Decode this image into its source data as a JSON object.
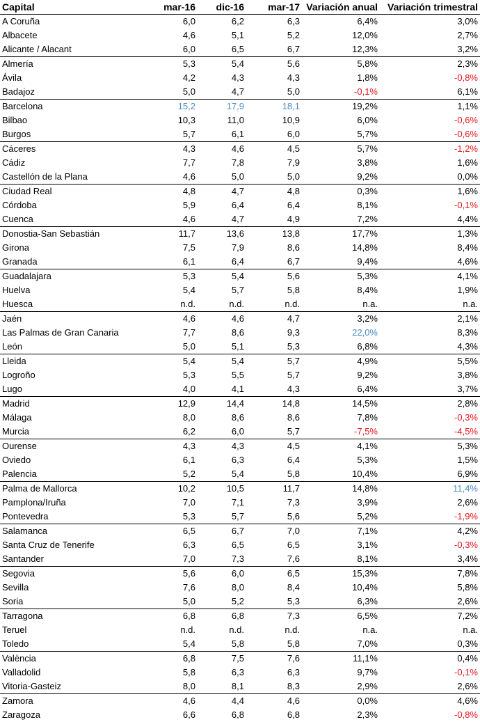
{
  "headers": [
    "Capital",
    "mar-16",
    "dic-16",
    "mar-17",
    "Variación anual",
    "Variación trimestral"
  ],
  "colors": {
    "highlight": "#4a8ac4",
    "negative": "#e8141c"
  },
  "rows": [
    {
      "group_start": false,
      "cells": [
        "A Coruña",
        "6,0",
        "6,2",
        "6,3",
        "6,4%",
        "3,0%"
      ]
    },
    {
      "group_start": false,
      "cells": [
        "Albacete",
        "4,6",
        "5,1",
        "5,2",
        "12,0%",
        "2,7%"
      ]
    },
    {
      "group_start": false,
      "cells": [
        "Alicante / Alacant",
        "6,0",
        "6,5",
        "6,7",
        "12,3%",
        "3,2%"
      ]
    },
    {
      "group_start": true,
      "cells": [
        "Almería",
        "5,3",
        "5,4",
        "5,6",
        "5,8%",
        "2,3%"
      ]
    },
    {
      "group_start": false,
      "cells": [
        "Ávila",
        "4,2",
        "4,3",
        "4,3",
        "1,8%",
        "-0,8%"
      ],
      "red": [
        5
      ]
    },
    {
      "group_start": false,
      "cells": [
        "Badajoz",
        "5,0",
        "4,7",
        "5,0",
        "-0,1%",
        "6,1%"
      ],
      "red": [
        4
      ]
    },
    {
      "group_start": true,
      "cells": [
        "Barcelona",
        "15,2",
        "17,9",
        "18,1",
        "19,2%",
        "1,1%"
      ],
      "blue": [
        1,
        2,
        3
      ]
    },
    {
      "group_start": false,
      "cells": [
        "Bilbao",
        "10,3",
        "11,0",
        "10,9",
        "6,0%",
        "-0,6%"
      ],
      "red": [
        5
      ]
    },
    {
      "group_start": false,
      "cells": [
        "Burgos",
        "5,7",
        "6,1",
        "6,0",
        "5,7%",
        "-0,6%"
      ],
      "red": [
        5
      ]
    },
    {
      "group_start": true,
      "cells": [
        "Cáceres",
        "4,3",
        "4,6",
        "4,5",
        "5,7%",
        "-1,2%"
      ],
      "red": [
        5
      ]
    },
    {
      "group_start": false,
      "cells": [
        "Cádiz",
        "7,7",
        "7,8",
        "7,9",
        "3,8%",
        "1,6%"
      ]
    },
    {
      "group_start": false,
      "cells": [
        "Castellón de la Plana",
        "4,6",
        "5,0",
        "5,0",
        "9,2%",
        "0,0%"
      ]
    },
    {
      "group_start": true,
      "cells": [
        "Ciudad Real",
        "4,8",
        "4,7",
        "4,8",
        "0,3%",
        "1,6%"
      ]
    },
    {
      "group_start": false,
      "cells": [
        "Córdoba",
        "5,9",
        "6,4",
        "6,4",
        "8,1%",
        "-0,1%"
      ],
      "red": [
        5
      ]
    },
    {
      "group_start": false,
      "cells": [
        "Cuenca",
        "4,6",
        "4,7",
        "4,9",
        "7,2%",
        "4,4%"
      ]
    },
    {
      "group_start": true,
      "cells": [
        "Donostia-San Sebastián",
        "11,7",
        "13,6",
        "13,8",
        "17,7%",
        "1,3%"
      ]
    },
    {
      "group_start": false,
      "cells": [
        "Girona",
        "7,5",
        "7,9",
        "8,6",
        "14,8%",
        "8,4%"
      ]
    },
    {
      "group_start": false,
      "cells": [
        "Granada",
        "6,1",
        "6,4",
        "6,7",
        "9,4%",
        "4,6%"
      ]
    },
    {
      "group_start": true,
      "cells": [
        "Guadalajara",
        "5,3",
        "5,4",
        "5,6",
        "5,3%",
        "4,1%"
      ]
    },
    {
      "group_start": false,
      "cells": [
        "Huelva",
        "5,4",
        "5,7",
        "5,8",
        "8,4%",
        "1,9%"
      ]
    },
    {
      "group_start": false,
      "cells": [
        "Huesca",
        "n.d.",
        "n.d.",
        "n.d.",
        "n.a.",
        "n.a."
      ]
    },
    {
      "group_start": true,
      "cells": [
        "Jaén",
        "4,6",
        "4,6",
        "4,7",
        "3,2%",
        "2,1%"
      ]
    },
    {
      "group_start": false,
      "cells": [
        "Las Palmas de Gran Canaria",
        "7,7",
        "8,6",
        "9,3",
        "22,0%",
        "8,3%"
      ],
      "blue": [
        4
      ]
    },
    {
      "group_start": false,
      "cells": [
        "León",
        "5,0",
        "5,1",
        "5,3",
        "6,8%",
        "4,3%"
      ]
    },
    {
      "group_start": true,
      "cells": [
        "Lleida",
        "5,4",
        "5,4",
        "5,7",
        "4,9%",
        "5,5%"
      ]
    },
    {
      "group_start": false,
      "cells": [
        "Logroño",
        "5,3",
        "5,5",
        "5,7",
        "9,2%",
        "3,8%"
      ]
    },
    {
      "group_start": false,
      "cells": [
        "Lugo",
        "4,0",
        "4,1",
        "4,3",
        "6,4%",
        "3,7%"
      ]
    },
    {
      "group_start": true,
      "cells": [
        "Madrid",
        "12,9",
        "14,4",
        "14,8",
        "14,5%",
        "2,8%"
      ]
    },
    {
      "group_start": false,
      "cells": [
        "Málaga",
        "8,0",
        "8,6",
        "8,6",
        "7,8%",
        "-0,3%"
      ],
      "red": [
        5
      ]
    },
    {
      "group_start": false,
      "cells": [
        "Murcia",
        "6,2",
        "6,0",
        "5,7",
        "-7,5%",
        "-4,5%"
      ],
      "red": [
        4,
        5
      ]
    },
    {
      "group_start": true,
      "cells": [
        "Ourense",
        "4,3",
        "4,3",
        "4,5",
        "4,1%",
        "5,3%"
      ]
    },
    {
      "group_start": false,
      "cells": [
        "Oviedo",
        "6,1",
        "6,3",
        "6,4",
        "5,3%",
        "1,5%"
      ]
    },
    {
      "group_start": false,
      "cells": [
        "Palencia",
        "5,2",
        "5,4",
        "5,8",
        "10,4%",
        "6,9%"
      ]
    },
    {
      "group_start": true,
      "cells": [
        "Palma de Mallorca",
        "10,2",
        "10,5",
        "11,7",
        "14,8%",
        "11,4%"
      ],
      "blue": [
        5
      ]
    },
    {
      "group_start": false,
      "cells": [
        "Pamplona/Iruña",
        "7,0",
        "7,1",
        "7,3",
        "3,9%",
        "2,6%"
      ]
    },
    {
      "group_start": false,
      "cells": [
        "Pontevedra",
        "5,3",
        "5,7",
        "5,6",
        "5,2%",
        "-1,9%"
      ],
      "red": [
        5
      ]
    },
    {
      "group_start": true,
      "cells": [
        "Salamanca",
        "6,5",
        "6,7",
        "7,0",
        "7,1%",
        "4,2%"
      ]
    },
    {
      "group_start": false,
      "cells": [
        "Santa Cruz de Tenerife",
        "6,3",
        "6,5",
        "6,5",
        "3,1%",
        "-0,3%"
      ],
      "red": [
        5
      ]
    },
    {
      "group_start": false,
      "cells": [
        "Santander",
        "7,0",
        "7,3",
        "7,6",
        "8,1%",
        "3,4%"
      ]
    },
    {
      "group_start": true,
      "cells": [
        "Segovia",
        "5,6",
        "6,0",
        "6,5",
        "15,3%",
        "7,8%"
      ]
    },
    {
      "group_start": false,
      "cells": [
        "Sevilla",
        "7,6",
        "8,0",
        "8,4",
        "10,4%",
        "5,8%"
      ]
    },
    {
      "group_start": false,
      "cells": [
        "Soria",
        "5,0",
        "5,2",
        "5,3",
        "6,3%",
        "2,6%"
      ]
    },
    {
      "group_start": true,
      "cells": [
        "Tarragona",
        "6,8",
        "6,8",
        "7,3",
        "6,5%",
        "7,2%"
      ]
    },
    {
      "group_start": false,
      "cells": [
        "Teruel",
        "n.d.",
        "n.d.",
        "n.d.",
        "n.a.",
        "n.a."
      ]
    },
    {
      "group_start": false,
      "cells": [
        "Toledo",
        "5,4",
        "5,8",
        "5,8",
        "7,0%",
        "0,3%"
      ]
    },
    {
      "group_start": true,
      "cells": [
        "València",
        "6,8",
        "7,5",
        "7,6",
        "11,1%",
        "0,4%"
      ]
    },
    {
      "group_start": false,
      "cells": [
        "Valladolid",
        "5,8",
        "6,3",
        "6,3",
        "9,7%",
        "-0,1%"
      ],
      "red": [
        5
      ]
    },
    {
      "group_start": false,
      "cells": [
        "Vitoria-Gasteiz",
        "8,0",
        "8,1",
        "8,3",
        "2,9%",
        "2,6%"
      ]
    },
    {
      "group_start": true,
      "cells": [
        "Zamora",
        "4,6",
        "4,4",
        "4,6",
        "0,0%",
        "4,6%"
      ]
    },
    {
      "group_start": false,
      "cells": [
        "Zaragoza",
        "6,6",
        "6,8",
        "6,8",
        "2,3%",
        "-0,8%"
      ],
      "red": [
        5
      ]
    }
  ]
}
